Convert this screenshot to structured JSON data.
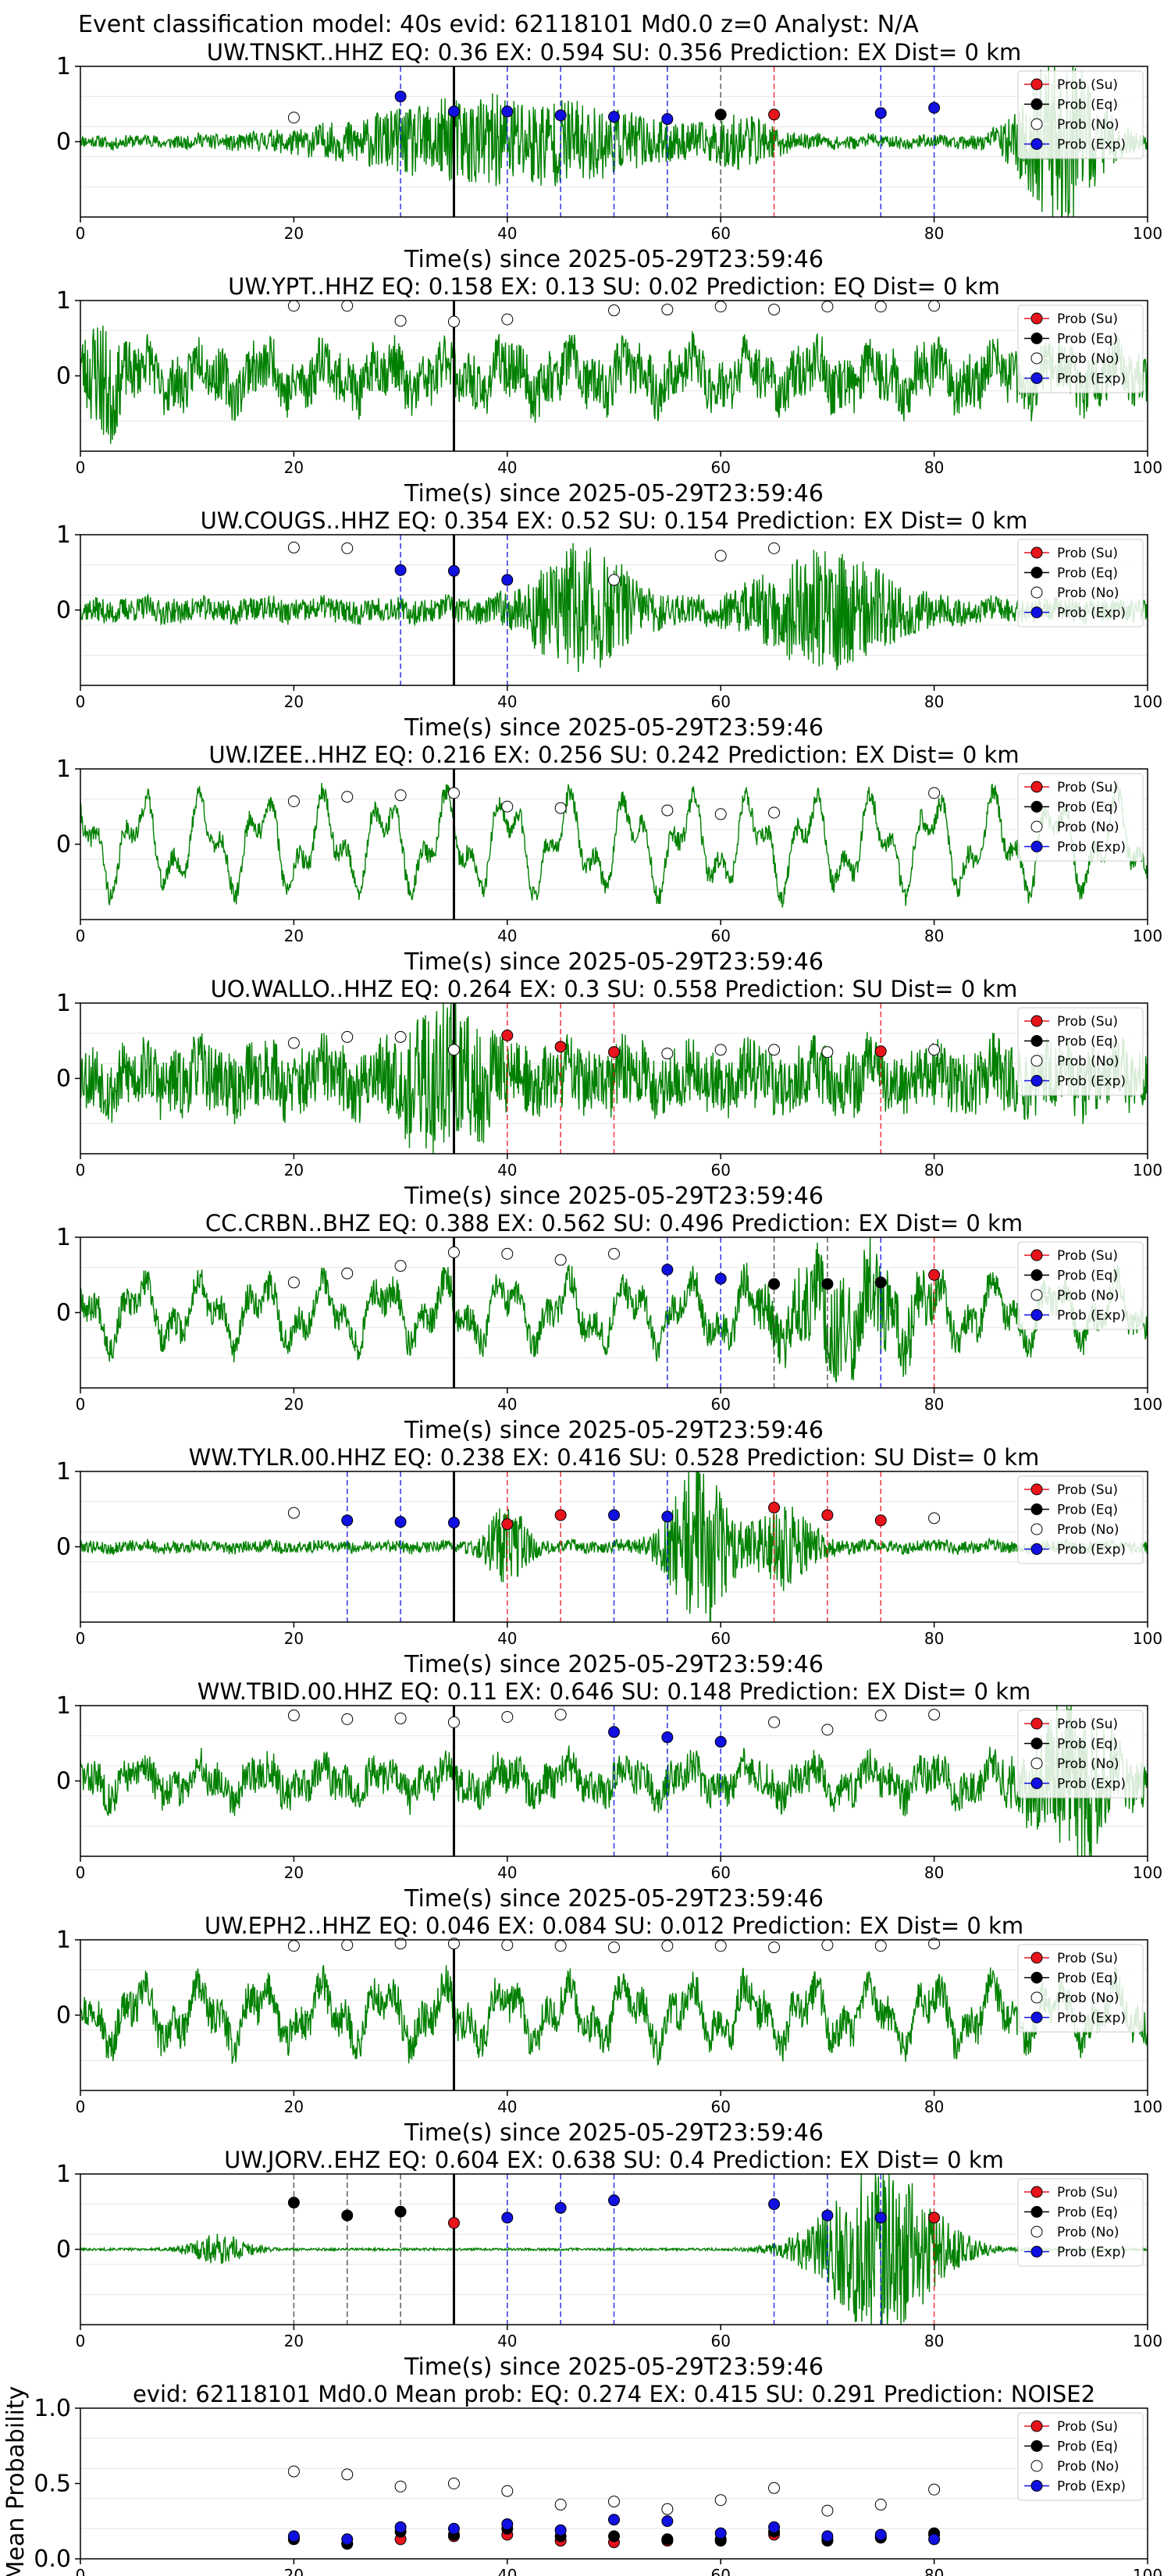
{
  "figure_title": "Event classification model: 40s evid: 62118101 Md0.0 z=0 Analyst: N/A",
  "xlabel": "Time(s) since 2025-05-29T23:59:46",
  "legend_labels": [
    "Prob (Su)",
    "Prob (Eq)",
    "Prob (No)",
    "Prob (Exp)"
  ],
  "colors": {
    "su": "#e8141c",
    "eq": "#000000",
    "no": "#ffffff",
    "exp": "#1010e0",
    "wave": "#008000"
  },
  "chart_data": [
    {
      "type": "line",
      "title": "UW.TNSKT..HHZ   EQ: 0.36  EX: 0.594  SU: 0.356   Prediction: EX    Dist= 0 km",
      "xlim": [
        0,
        100
      ],
      "ylim": [
        -1,
        1
      ],
      "xticks": [
        0,
        20,
        40,
        60,
        80,
        100
      ],
      "yticks": [
        0,
        1
      ],
      "event_time": 35,
      "wave": {
        "seed": 11,
        "amp": 0.05,
        "bursts": [
          [
            40,
            30,
            0.35
          ],
          [
            92,
            8,
            0.7
          ],
          [
            62,
            6,
            0.15
          ]
        ],
        "lowfreq": 0.02
      },
      "points": {
        "exp": [
          [
            30,
            0.6
          ],
          [
            35,
            0.4
          ],
          [
            40,
            0.4
          ],
          [
            45,
            0.35
          ],
          [
            50,
            0.33
          ],
          [
            55,
            0.3
          ],
          [
            75,
            0.38
          ],
          [
            80,
            0.45
          ]
        ],
        "eq": [
          [
            60,
            0.36
          ]
        ],
        "su": [
          [
            65,
            0.36
          ]
        ],
        "no": [
          [
            20,
            0.32
          ]
        ]
      },
      "vlines": {
        "exp": [
          30,
          40,
          45,
          50,
          55,
          75,
          80
        ],
        "eq": [
          60
        ],
        "su": [
          65
        ]
      }
    },
    {
      "type": "line",
      "title": "UW.YPT..HHZ   EQ: 0.158  EX: 0.13  SU: 0.02   Prediction: EQ    Dist= 0 km",
      "xlim": [
        0,
        100
      ],
      "ylim": [
        -1,
        1
      ],
      "xticks": [
        0,
        20,
        40,
        60,
        80,
        100
      ],
      "yticks": [
        0,
        1
      ],
      "event_time": 35,
      "wave": {
        "seed": 23,
        "amp": 0.22,
        "bursts": [
          [
            2,
            3,
            0.3
          ]
        ],
        "lowfreq": 0.18
      },
      "points": {
        "no": [
          [
            20,
            0.93
          ],
          [
            25,
            0.93
          ],
          [
            30,
            0.73
          ],
          [
            35,
            0.72
          ],
          [
            40,
            0.75
          ],
          [
            50,
            0.87
          ],
          [
            55,
            0.88
          ],
          [
            60,
            0.92
          ],
          [
            65,
            0.88
          ],
          [
            70,
            0.92
          ],
          [
            75,
            0.92
          ],
          [
            80,
            0.93
          ]
        ]
      },
      "vlines": {}
    },
    {
      "type": "line",
      "title": "UW.COUGS..HHZ   EQ: 0.354  EX: 0.52  SU: 0.154   Prediction: EX    Dist= 0 km",
      "xlim": [
        0,
        100
      ],
      "ylim": [
        -1,
        1
      ],
      "xticks": [
        0,
        20,
        40,
        60,
        80,
        100
      ],
      "yticks": [
        0,
        1
      ],
      "event_time": 35,
      "wave": {
        "seed": 37,
        "amp": 0.1,
        "bursts": [
          [
            47,
            10,
            0.45
          ],
          [
            70,
            14,
            0.4
          ]
        ],
        "lowfreq": 0.03
      },
      "points": {
        "exp": [
          [
            30,
            0.53
          ],
          [
            35,
            0.52
          ],
          [
            40,
            0.4
          ]
        ],
        "no": [
          [
            20,
            0.83
          ],
          [
            25,
            0.82
          ],
          [
            50,
            0.4
          ],
          [
            60,
            0.72
          ],
          [
            65,
            0.82
          ]
        ]
      },
      "vlines": {
        "exp": [
          30,
          40
        ]
      }
    },
    {
      "type": "line",
      "title": "UW.IZEE..HHZ   EQ: 0.216  EX: 0.256  SU: 0.242   Prediction: EX    Dist= 0 km",
      "xlim": [
        0,
        100
      ],
      "ylim": [
        -1,
        1
      ],
      "xticks": [
        0,
        20,
        40,
        60,
        80,
        100
      ],
      "yticks": [
        0,
        1
      ],
      "event_time": 35,
      "wave": {
        "seed": 41,
        "amp": 0.08,
        "bursts": [],
        "lowfreq": 0.45
      },
      "points": {
        "no": [
          [
            20,
            0.57
          ],
          [
            25,
            0.63
          ],
          [
            30,
            0.65
          ],
          [
            35,
            0.68
          ],
          [
            40,
            0.5
          ],
          [
            45,
            0.48
          ],
          [
            55,
            0.45
          ],
          [
            60,
            0.4
          ],
          [
            65,
            0.42
          ],
          [
            80,
            0.68
          ]
        ]
      },
      "vlines": {}
    },
    {
      "type": "line",
      "title": "UO.WALLO..HHZ   EQ: 0.264  EX: 0.3  SU: 0.558   Prediction: SU    Dist= 0 km",
      "xlim": [
        0,
        100
      ],
      "ylim": [
        -1,
        1
      ],
      "xticks": [
        0,
        20,
        40,
        60,
        80,
        100
      ],
      "yticks": [
        0,
        1
      ],
      "event_time": 35,
      "wave": {
        "seed": 53,
        "amp": 0.28,
        "bursts": [
          [
            34,
            8,
            0.4
          ]
        ],
        "lowfreq": 0.12
      },
      "points": {
        "su": [
          [
            40,
            0.57
          ],
          [
            45,
            0.42
          ],
          [
            50,
            0.35
          ],
          [
            75,
            0.36
          ]
        ],
        "no": [
          [
            20,
            0.47
          ],
          [
            25,
            0.55
          ],
          [
            30,
            0.55
          ],
          [
            35,
            0.38
          ],
          [
            55,
            0.33
          ],
          [
            60,
            0.38
          ],
          [
            65,
            0.38
          ],
          [
            70,
            0.35
          ],
          [
            80,
            0.38
          ]
        ]
      },
      "vlines": {
        "su": [
          40,
          45,
          50,
          75
        ]
      }
    },
    {
      "type": "line",
      "title": "CC.CRBN..BHZ   EQ: 0.388  EX: 0.562  SU: 0.496   Prediction: EX    Dist= 0 km",
      "xlim": [
        0,
        100
      ],
      "ylim": [
        -1,
        1
      ],
      "xticks": [
        0,
        20,
        40,
        60,
        80,
        100
      ],
      "yticks": [
        0,
        1
      ],
      "event_time": 35,
      "wave": {
        "seed": 67,
        "amp": 0.12,
        "bursts": [
          [
            72,
            14,
            0.3
          ]
        ],
        "lowfreq": 0.3
      },
      "points": {
        "exp": [
          [
            55,
            0.57
          ],
          [
            60,
            0.45
          ]
        ],
        "eq": [
          [
            65,
            0.38
          ],
          [
            70,
            0.38
          ],
          [
            75,
            0.4
          ]
        ],
        "su": [
          [
            80,
            0.5
          ]
        ],
        "no": [
          [
            20,
            0.4
          ],
          [
            25,
            0.52
          ],
          [
            30,
            0.62
          ],
          [
            35,
            0.8
          ],
          [
            40,
            0.78
          ],
          [
            45,
            0.7
          ],
          [
            50,
            0.78
          ]
        ]
      },
      "vlines": {
        "exp": [
          55,
          60,
          75
        ],
        "eq": [
          65,
          70
        ],
        "su": [
          80
        ]
      }
    },
    {
      "type": "line",
      "title": "WW.TYLR.00.HHZ   EQ: 0.238  EX: 0.416  SU: 0.528   Prediction: SU    Dist= 0 km",
      "xlim": [
        0,
        100
      ],
      "ylim": [
        -1,
        1
      ],
      "xticks": [
        0,
        20,
        40,
        60,
        80,
        100
      ],
      "yticks": [
        0,
        1
      ],
      "event_time": 35,
      "wave": {
        "seed": 79,
        "amp": 0.05,
        "bursts": [
          [
            40,
            4,
            0.3
          ],
          [
            58,
            6,
            0.65
          ],
          [
            66,
            6,
            0.3
          ]
        ],
        "lowfreq": 0.02
      },
      "points": {
        "exp": [
          [
            25,
            0.35
          ],
          [
            30,
            0.33
          ],
          [
            35,
            0.32
          ],
          [
            50,
            0.42
          ],
          [
            55,
            0.4
          ]
        ],
        "su": [
          [
            40,
            0.3
          ],
          [
            45,
            0.42
          ],
          [
            65,
            0.52
          ],
          [
            70,
            0.42
          ],
          [
            75,
            0.35
          ]
        ],
        "no": [
          [
            20,
            0.45
          ],
          [
            80,
            0.38
          ]
        ]
      },
      "vlines": {
        "exp": [
          25,
          30,
          50,
          55
        ],
        "su": [
          40,
          45,
          65,
          70,
          75
        ]
      }
    },
    {
      "type": "line",
      "title": "WW.TBID.00.HHZ   EQ: 0.11  EX: 0.646  SU: 0.148   Prediction: EX    Dist= 0 km",
      "xlim": [
        0,
        100
      ],
      "ylim": [
        -1,
        1
      ],
      "xticks": [
        0,
        20,
        40,
        60,
        80,
        100
      ],
      "yticks": [
        0,
        1
      ],
      "event_time": 35,
      "wave": {
        "seed": 83,
        "amp": 0.15,
        "bursts": [
          [
            93,
            8,
            0.55
          ]
        ],
        "lowfreq": 0.15
      },
      "points": {
        "exp": [
          [
            50,
            0.65
          ],
          [
            55,
            0.58
          ],
          [
            60,
            0.52
          ]
        ],
        "no": [
          [
            20,
            0.87
          ],
          [
            25,
            0.82
          ],
          [
            30,
            0.83
          ],
          [
            35,
            0.78
          ],
          [
            40,
            0.85
          ],
          [
            45,
            0.88
          ],
          [
            65,
            0.78
          ],
          [
            70,
            0.68
          ],
          [
            75,
            0.87
          ],
          [
            80,
            0.88
          ]
        ]
      },
      "vlines": {
        "exp": [
          50,
          55,
          60
        ]
      }
    },
    {
      "type": "line",
      "title": "UW.EPH2..HHZ   EQ: 0.046  EX: 0.084  SU: 0.012   Prediction: EX    Dist= 0 km",
      "xlim": [
        0,
        100
      ],
      "ylim": [
        -1,
        1
      ],
      "xticks": [
        0,
        20,
        40,
        60,
        80,
        100
      ],
      "yticks": [
        0,
        1
      ],
      "event_time": 35,
      "wave": {
        "seed": 97,
        "amp": 0.15,
        "bursts": [],
        "lowfreq": 0.28
      },
      "points": {
        "no": [
          [
            20,
            0.92
          ],
          [
            25,
            0.93
          ],
          [
            30,
            0.95
          ],
          [
            35,
            0.95
          ],
          [
            40,
            0.93
          ],
          [
            45,
            0.92
          ],
          [
            50,
            0.9
          ],
          [
            55,
            0.92
          ],
          [
            60,
            0.92
          ],
          [
            65,
            0.9
          ],
          [
            70,
            0.93
          ],
          [
            75,
            0.92
          ],
          [
            80,
            0.95
          ]
        ]
      },
      "vlines": {}
    },
    {
      "type": "line",
      "title": "UW.JORV..EHZ   EQ: 0.604  EX: 0.638  SU: 0.4   Prediction: EX    Dist= 0 km",
      "xlim": [
        0,
        100
      ],
      "ylim": [
        -1,
        1
      ],
      "xticks": [
        0,
        20,
        40,
        60,
        80,
        100
      ],
      "yticks": [
        0,
        1
      ],
      "event_time": 35,
      "wave": {
        "seed": 101,
        "amp": 0.01,
        "bursts": [
          [
            13,
            6,
            0.12
          ],
          [
            75,
            12,
            0.7
          ]
        ],
        "lowfreq": 0.0
      },
      "points": {
        "eq": [
          [
            20,
            0.62
          ],
          [
            25,
            0.45
          ],
          [
            30,
            0.5
          ]
        ],
        "su": [
          [
            35,
            0.35
          ],
          [
            80,
            0.42
          ]
        ],
        "exp": [
          [
            40,
            0.42
          ],
          [
            45,
            0.55
          ],
          [
            50,
            0.65
          ],
          [
            65,
            0.6
          ],
          [
            70,
            0.45
          ],
          [
            75,
            0.42
          ]
        ]
      },
      "vlines": {
        "eq": [
          20,
          25,
          30
        ],
        "exp": [
          40,
          45,
          50,
          65,
          70,
          75
        ],
        "su": [
          80
        ]
      }
    },
    {
      "type": "scatter",
      "title": "evid: 62118101  Md0.0   Mean prob:   EQ: 0.274  EX: 0.415  SU: 0.291   Prediction: NOISE2",
      "ylabel": "Mean Probability",
      "xlim": [
        0,
        100
      ],
      "ylim": [
        0,
        1
      ],
      "xticks": [
        0,
        20,
        40,
        60,
        80,
        100
      ],
      "yticks": [
        0.0,
        0.5,
        1.0
      ],
      "ytick_labels": [
        "0.0",
        "0.5",
        "1.0"
      ],
      "points": {
        "no": [
          [
            20,
            0.58
          ],
          [
            25,
            0.56
          ],
          [
            30,
            0.48
          ],
          [
            35,
            0.5
          ],
          [
            40,
            0.45
          ],
          [
            45,
            0.36
          ],
          [
            50,
            0.38
          ],
          [
            55,
            0.33
          ],
          [
            60,
            0.39
          ],
          [
            65,
            0.47
          ],
          [
            70,
            0.32
          ],
          [
            75,
            0.36
          ],
          [
            80,
            0.46
          ]
        ],
        "exp": [
          [
            20,
            0.15
          ],
          [
            25,
            0.13
          ],
          [
            30,
            0.21
          ],
          [
            35,
            0.2
          ],
          [
            40,
            0.23
          ],
          [
            45,
            0.19
          ],
          [
            50,
            0.26
          ],
          [
            55,
            0.25
          ],
          [
            60,
            0.17
          ],
          [
            65,
            0.21
          ],
          [
            70,
            0.15
          ],
          [
            75,
            0.16
          ],
          [
            80,
            0.13
          ]
        ],
        "eq": [
          [
            20,
            0.13
          ],
          [
            25,
            0.1
          ],
          [
            30,
            0.18
          ],
          [
            35,
            0.16
          ],
          [
            40,
            0.2
          ],
          [
            45,
            0.15
          ],
          [
            50,
            0.15
          ],
          [
            55,
            0.13
          ],
          [
            60,
            0.12
          ],
          [
            65,
            0.18
          ],
          [
            70,
            0.12
          ],
          [
            75,
            0.14
          ],
          [
            80,
            0.17
          ]
        ],
        "su": [
          [
            20,
            0.14
          ],
          [
            25,
            0.1
          ],
          [
            30,
            0.13
          ],
          [
            35,
            0.15
          ],
          [
            40,
            0.16
          ],
          [
            45,
            0.12
          ],
          [
            50,
            0.11
          ],
          [
            55,
            0.12
          ],
          [
            60,
            0.13
          ],
          [
            65,
            0.16
          ],
          [
            70,
            0.13
          ],
          [
            75,
            0.15
          ],
          [
            80,
            0.16
          ]
        ]
      },
      "vlines": {}
    }
  ]
}
